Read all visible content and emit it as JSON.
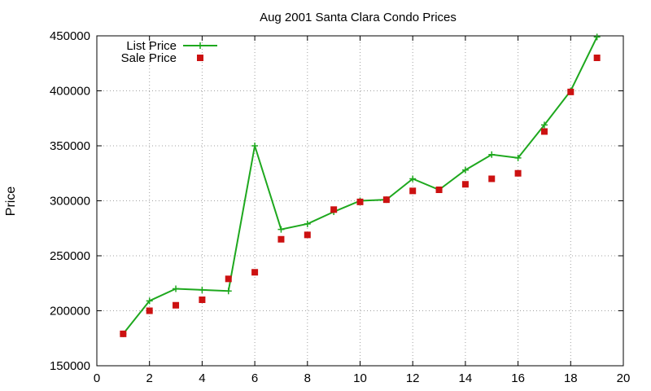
{
  "chart_data": {
    "type": "line",
    "title": "Aug 2001 Santa Clara Condo Prices",
    "xlabel": "",
    "ylabel": "Price",
    "xlim": [
      0,
      20
    ],
    "ylim": [
      150000,
      450000
    ],
    "xticks": [
      0,
      2,
      4,
      6,
      8,
      10,
      12,
      14,
      16,
      18,
      20
    ],
    "yticks": [
      150000,
      200000,
      250000,
      300000,
      350000,
      400000,
      450000
    ],
    "grid": true,
    "legend_position": "top-left",
    "series": [
      {
        "name": "List Price",
        "style": "line-with-plus-markers",
        "color": "#1ea81e",
        "x": [
          1,
          2,
          3,
          4,
          5,
          6,
          7,
          8,
          9,
          10,
          11,
          12,
          13,
          14,
          15,
          16,
          17,
          18,
          19
        ],
        "y": [
          179000,
          209000,
          220000,
          219000,
          218000,
          350000,
          274000,
          279000,
          290000,
          300000,
          301000,
          320000,
          310000,
          328000,
          342000,
          339000,
          369000,
          400000,
          449000
        ]
      },
      {
        "name": "Sale Price",
        "style": "square-markers",
        "color": "#cc1111",
        "x": [
          1,
          2,
          3,
          4,
          5,
          6,
          7,
          8,
          9,
          10,
          11,
          12,
          13,
          14,
          15,
          16,
          17,
          18,
          19
        ],
        "y": [
          179000,
          200000,
          205000,
          210000,
          229000,
          235000,
          265000,
          269000,
          292000,
          299000,
          301000,
          309000,
          310000,
          315000,
          320000,
          325000,
          363000,
          399000,
          430000
        ]
      }
    ]
  }
}
